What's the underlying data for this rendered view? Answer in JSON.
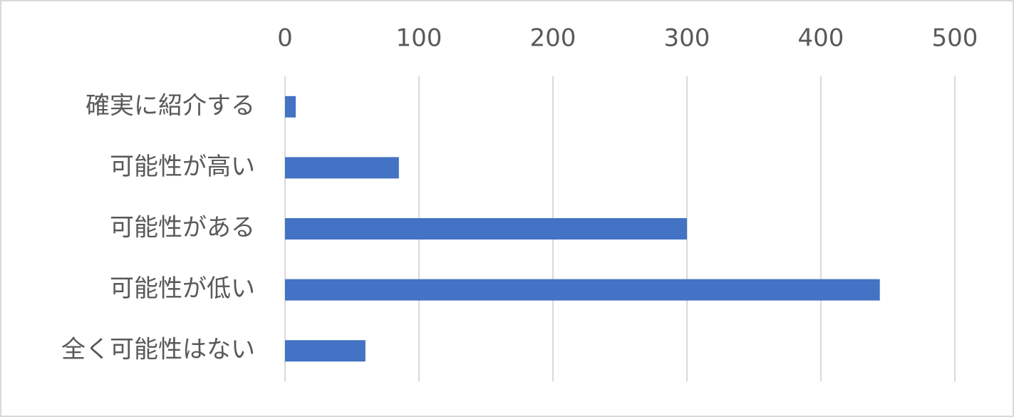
{
  "chart_data": {
    "type": "bar",
    "orientation": "horizontal",
    "categories": [
      "確実に紹介する",
      "可能性が高い",
      "可能性がある",
      "可能性が低い",
      "全く可能性はない"
    ],
    "values": [
      8,
      85,
      300,
      444,
      60
    ],
    "color": "#4472c4",
    "xlim": [
      0,
      500
    ],
    "xticks": [
      0,
      100,
      200,
      300,
      400,
      500
    ],
    "grid": true
  }
}
